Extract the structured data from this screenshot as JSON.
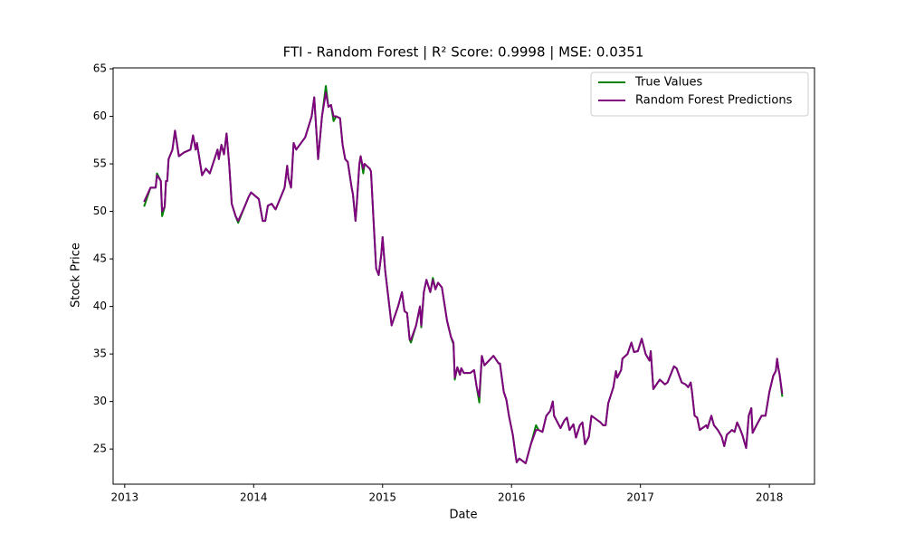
{
  "chart_data": {
    "type": "line",
    "title": "FTI - Random Forest | R² Score: 0.9998 | MSE: 0.0351",
    "xlabel": "Date",
    "ylabel": "Stock Price",
    "x": [
      2013.15,
      2013.2,
      2013.24,
      2013.25,
      2013.28,
      2013.29,
      2013.31,
      2013.32,
      2013.33,
      2013.34,
      2013.37,
      2013.39,
      2013.42,
      2013.46,
      2013.51,
      2013.53,
      2013.55,
      2013.56,
      2013.6,
      2013.63,
      2013.66,
      2013.72,
      2013.73,
      2013.75,
      2013.77,
      2013.79,
      2013.81,
      2013.83,
      2013.86,
      2013.88,
      2013.93,
      2013.96,
      2013.98,
      2014.04,
      2014.07,
      2014.09,
      2014.11,
      2014.14,
      2014.17,
      2014.21,
      2014.24,
      2014.26,
      2014.27,
      2014.29,
      2014.31,
      2014.33,
      2014.4,
      2014.45,
      2014.47,
      2014.5,
      2014.53,
      2014.56,
      2014.58,
      2014.6,
      2014.62,
      2014.64,
      2014.67,
      2014.69,
      2014.71,
      2014.73,
      2014.76,
      2014.77,
      2014.79,
      2014.8,
      2014.82,
      2014.83,
      2014.85,
      2014.86,
      2014.9,
      2014.91,
      2014.93,
      2014.95,
      2014.97,
      2014.99,
      2015.0,
      2015.02,
      2015.07,
      2015.12,
      2015.15,
      2015.17,
      2015.19,
      2015.21,
      2015.22,
      2015.26,
      2015.29,
      2015.3,
      2015.32,
      2015.34,
      2015.37,
      2015.39,
      2015.41,
      2015.43,
      2015.46,
      2015.5,
      2015.53,
      2015.55,
      2015.56,
      2015.58,
      2015.6,
      2015.61,
      2015.63,
      2015.68,
      2015.71,
      2015.73,
      2015.75,
      2015.77,
      2015.79,
      2015.86,
      2015.9,
      2015.91,
      2015.94,
      2015.96,
      2015.98,
      2016.01,
      2016.03,
      2016.04,
      2016.06,
      2016.11,
      2016.13,
      2016.15,
      2016.19,
      2016.21,
      2016.24,
      2016.27,
      2016.3,
      2016.32,
      2016.33,
      2016.38,
      2016.41,
      2016.43,
      2016.45,
      2016.48,
      2016.5,
      2016.53,
      2016.55,
      2016.57,
      2016.6,
      2016.62,
      2016.67,
      2016.69,
      2016.71,
      2016.73,
      2016.75,
      2016.79,
      2016.81,
      2016.82,
      2016.85,
      2016.86,
      2016.9,
      2016.93,
      2016.95,
      2016.98,
      2017.01,
      2017.04,
      2017.07,
      2017.08,
      2017.1,
      2017.15,
      2017.19,
      2017.21,
      2017.26,
      2017.28,
      2017.32,
      2017.35,
      2017.37,
      2017.39,
      2017.4,
      2017.42,
      2017.44,
      2017.46,
      2017.48,
      2017.51,
      2017.52,
      2017.55,
      2017.57,
      2017.6,
      2017.63,
      2017.65,
      2017.67,
      2017.71,
      2017.73,
      2017.75,
      2017.77,
      2017.79,
      2017.82,
      2017.84,
      2017.86,
      2017.87,
      2017.9,
      2017.94,
      2017.97,
      2018.0,
      2018.03,
      2018.05,
      2018.06,
      2018.07,
      2018.08,
      2018.1
    ],
    "series": [
      {
        "name": "True Values",
        "color": "#008000",
        "values": [
          50.5,
          52.5,
          52.5,
          54,
          53.2,
          49.5,
          50.5,
          53.2,
          53.2,
          55.5,
          56.5,
          58.5,
          55.8,
          56.2,
          56.5,
          58,
          56.5,
          57.2,
          53.8,
          54.5,
          54,
          56.5,
          55.5,
          57,
          56,
          58.2,
          55,
          50.8,
          49.5,
          48.8,
          50.5,
          51.5,
          52,
          51.3,
          49,
          49,
          50.6,
          50.8,
          50.2,
          51.5,
          52.5,
          54.8,
          53.5,
          52.5,
          57.2,
          56.5,
          57.8,
          60,
          62,
          55.5,
          60,
          63.2,
          61,
          61.2,
          59.5,
          60,
          59.8,
          57,
          55.5,
          55.2,
          52.5,
          51.8,
          49,
          50.8,
          55,
          55.8,
          54,
          55,
          54.5,
          54.2,
          49,
          44,
          43.3,
          45.5,
          47.3,
          43.8,
          38,
          40,
          41.5,
          39.5,
          39.3,
          36.5,
          36.2,
          38,
          40,
          37.8,
          41.5,
          42.8,
          41.5,
          43,
          41.8,
          42.5,
          42,
          38.5,
          36.8,
          36,
          32.3,
          33.6,
          32.8,
          33.5,
          33,
          33,
          33.3,
          31.5,
          29.9,
          34.8,
          33.8,
          34.8,
          34,
          34,
          31,
          30.2,
          28.5,
          26.5,
          24.5,
          23.6,
          24,
          23.5,
          24.5,
          25.5,
          27.5,
          27,
          26.8,
          28.5,
          29,
          30,
          28.5,
          27.2,
          28,
          28.3,
          27,
          27.6,
          26.2,
          27.5,
          27.8,
          25.5,
          26.3,
          28.5,
          28,
          27.8,
          27.5,
          27.5,
          29.8,
          31.5,
          33.2,
          32.5,
          33.3,
          34.5,
          35,
          36.2,
          35.2,
          35.3,
          36.6,
          35,
          34.3,
          35.3,
          31.3,
          32.3,
          31.8,
          32,
          33.7,
          33.5,
          32,
          31.8,
          31.5,
          32,
          31,
          28.5,
          28.3,
          27,
          27.2,
          27.5,
          27.2,
          28.5,
          27.5,
          27,
          26.3,
          25.3,
          26.5,
          27,
          26.8,
          27.8,
          27.2,
          26.5,
          25.1,
          28.5,
          29.3,
          26.7,
          27.5,
          28.5,
          28.5,
          31,
          32.7,
          33.2,
          34.5,
          33.5,
          32.8,
          30.5
        ]
      },
      {
        "name": "Random Forest Predictions",
        "color": "#800080",
        "values": [
          51,
          52.5,
          52.5,
          53.8,
          53.2,
          50,
          50.5,
          53.2,
          53.2,
          55.5,
          56.5,
          58.5,
          55.8,
          56.2,
          56.5,
          58,
          56.5,
          57.2,
          53.8,
          54.5,
          54,
          56.5,
          55.5,
          57,
          56,
          58.2,
          55,
          50.8,
          49.5,
          49,
          50.5,
          51.5,
          52,
          51.3,
          49,
          49,
          50.6,
          50.8,
          50.2,
          51.5,
          52.5,
          54.8,
          53.5,
          52.5,
          57.2,
          56.5,
          57.8,
          60,
          62,
          55.5,
          60,
          62.5,
          61,
          61.2,
          60,
          60,
          59.8,
          57,
          55.5,
          55.2,
          52.5,
          51.8,
          49,
          50.8,
          55,
          55.8,
          54.5,
          55,
          54.5,
          54.2,
          49,
          44,
          43.3,
          45.5,
          47.3,
          43.8,
          38,
          40,
          41.5,
          39.5,
          39.3,
          36.5,
          36.5,
          38,
          40,
          38,
          41.5,
          42.8,
          41.5,
          42.8,
          41.8,
          42.5,
          42,
          38.5,
          36.8,
          36.2,
          32.5,
          33.6,
          32.8,
          33.5,
          33,
          33,
          33.3,
          31.5,
          30.5,
          34.8,
          33.8,
          34.8,
          34,
          34,
          31,
          30.2,
          28.5,
          26.5,
          24.5,
          23.6,
          24,
          23.5,
          24.5,
          25.5,
          27,
          27,
          26.8,
          28.5,
          29,
          30,
          28.5,
          27.2,
          28,
          28.3,
          27,
          27.6,
          26.2,
          27.5,
          27.8,
          25.5,
          26.3,
          28.5,
          28,
          27.8,
          27.5,
          27.5,
          29.8,
          31.5,
          33.2,
          32.5,
          33.3,
          34.5,
          35,
          36.2,
          35.2,
          35.3,
          36.6,
          35,
          34.3,
          35.3,
          31.3,
          32.3,
          31.8,
          32,
          33.7,
          33.5,
          32,
          31.8,
          31.5,
          32,
          31,
          28.5,
          28.3,
          27,
          27.2,
          27.5,
          27.2,
          28.5,
          27.5,
          27,
          26.3,
          25.3,
          26.5,
          27,
          26.8,
          27.8,
          27.2,
          26.5,
          25.1,
          28.5,
          29.3,
          26.7,
          27.5,
          28.5,
          28.5,
          31,
          32.7,
          33.2,
          34.5,
          33.5,
          32.8,
          30.8
        ]
      }
    ],
    "xlim": [
      2012.91,
      2018.35
    ],
    "xticks": [
      2013,
      2014,
      2015,
      2016,
      2017,
      2018
    ],
    "ylim": [
      21.3,
      65.1
    ],
    "yticks": [
      25,
      30,
      35,
      40,
      45,
      50,
      55,
      60,
      65
    ],
    "grid": false,
    "legend": "upper right"
  }
}
